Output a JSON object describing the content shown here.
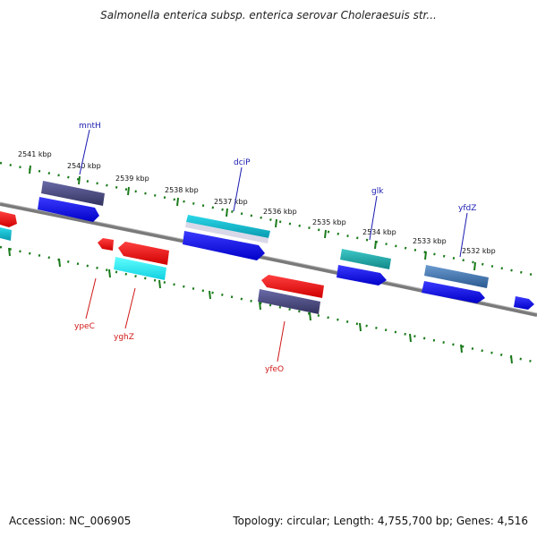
{
  "title": "Salmonella enterica subsp. enterica serovar Choleraesuis str...",
  "footer": {
    "accession": "Accession: NC_006905",
    "summary": "Topology: circular; Length: 4,755,700 bp; Genes: 4,516"
  },
  "scale_labels": [
    "2541 kbp",
    "2540 kbp",
    "2539 kbp",
    "2538 kbp",
    "2537 kbp",
    "2536 kbp",
    "2535 kbp",
    "2534 kbp",
    "2533 kbp",
    "2532 kbp"
  ],
  "genes_top": [
    "mntH",
    "dciP",
    "glk",
    "yfdZ"
  ],
  "genes_bottom": [
    "ypeC",
    "yghZ",
    "yfeO"
  ],
  "colors": {
    "backbone": "#7a7a7a",
    "ticks": "#1a7a1a",
    "gene_blue": "#0a0ae0",
    "gene_red": "#ee1010",
    "gene_navy": "#4a4a8a",
    "gene_cyan": "#18c8d8",
    "gene_teal": "#20b0b0",
    "gene_steel": "#4a7ab0"
  }
}
